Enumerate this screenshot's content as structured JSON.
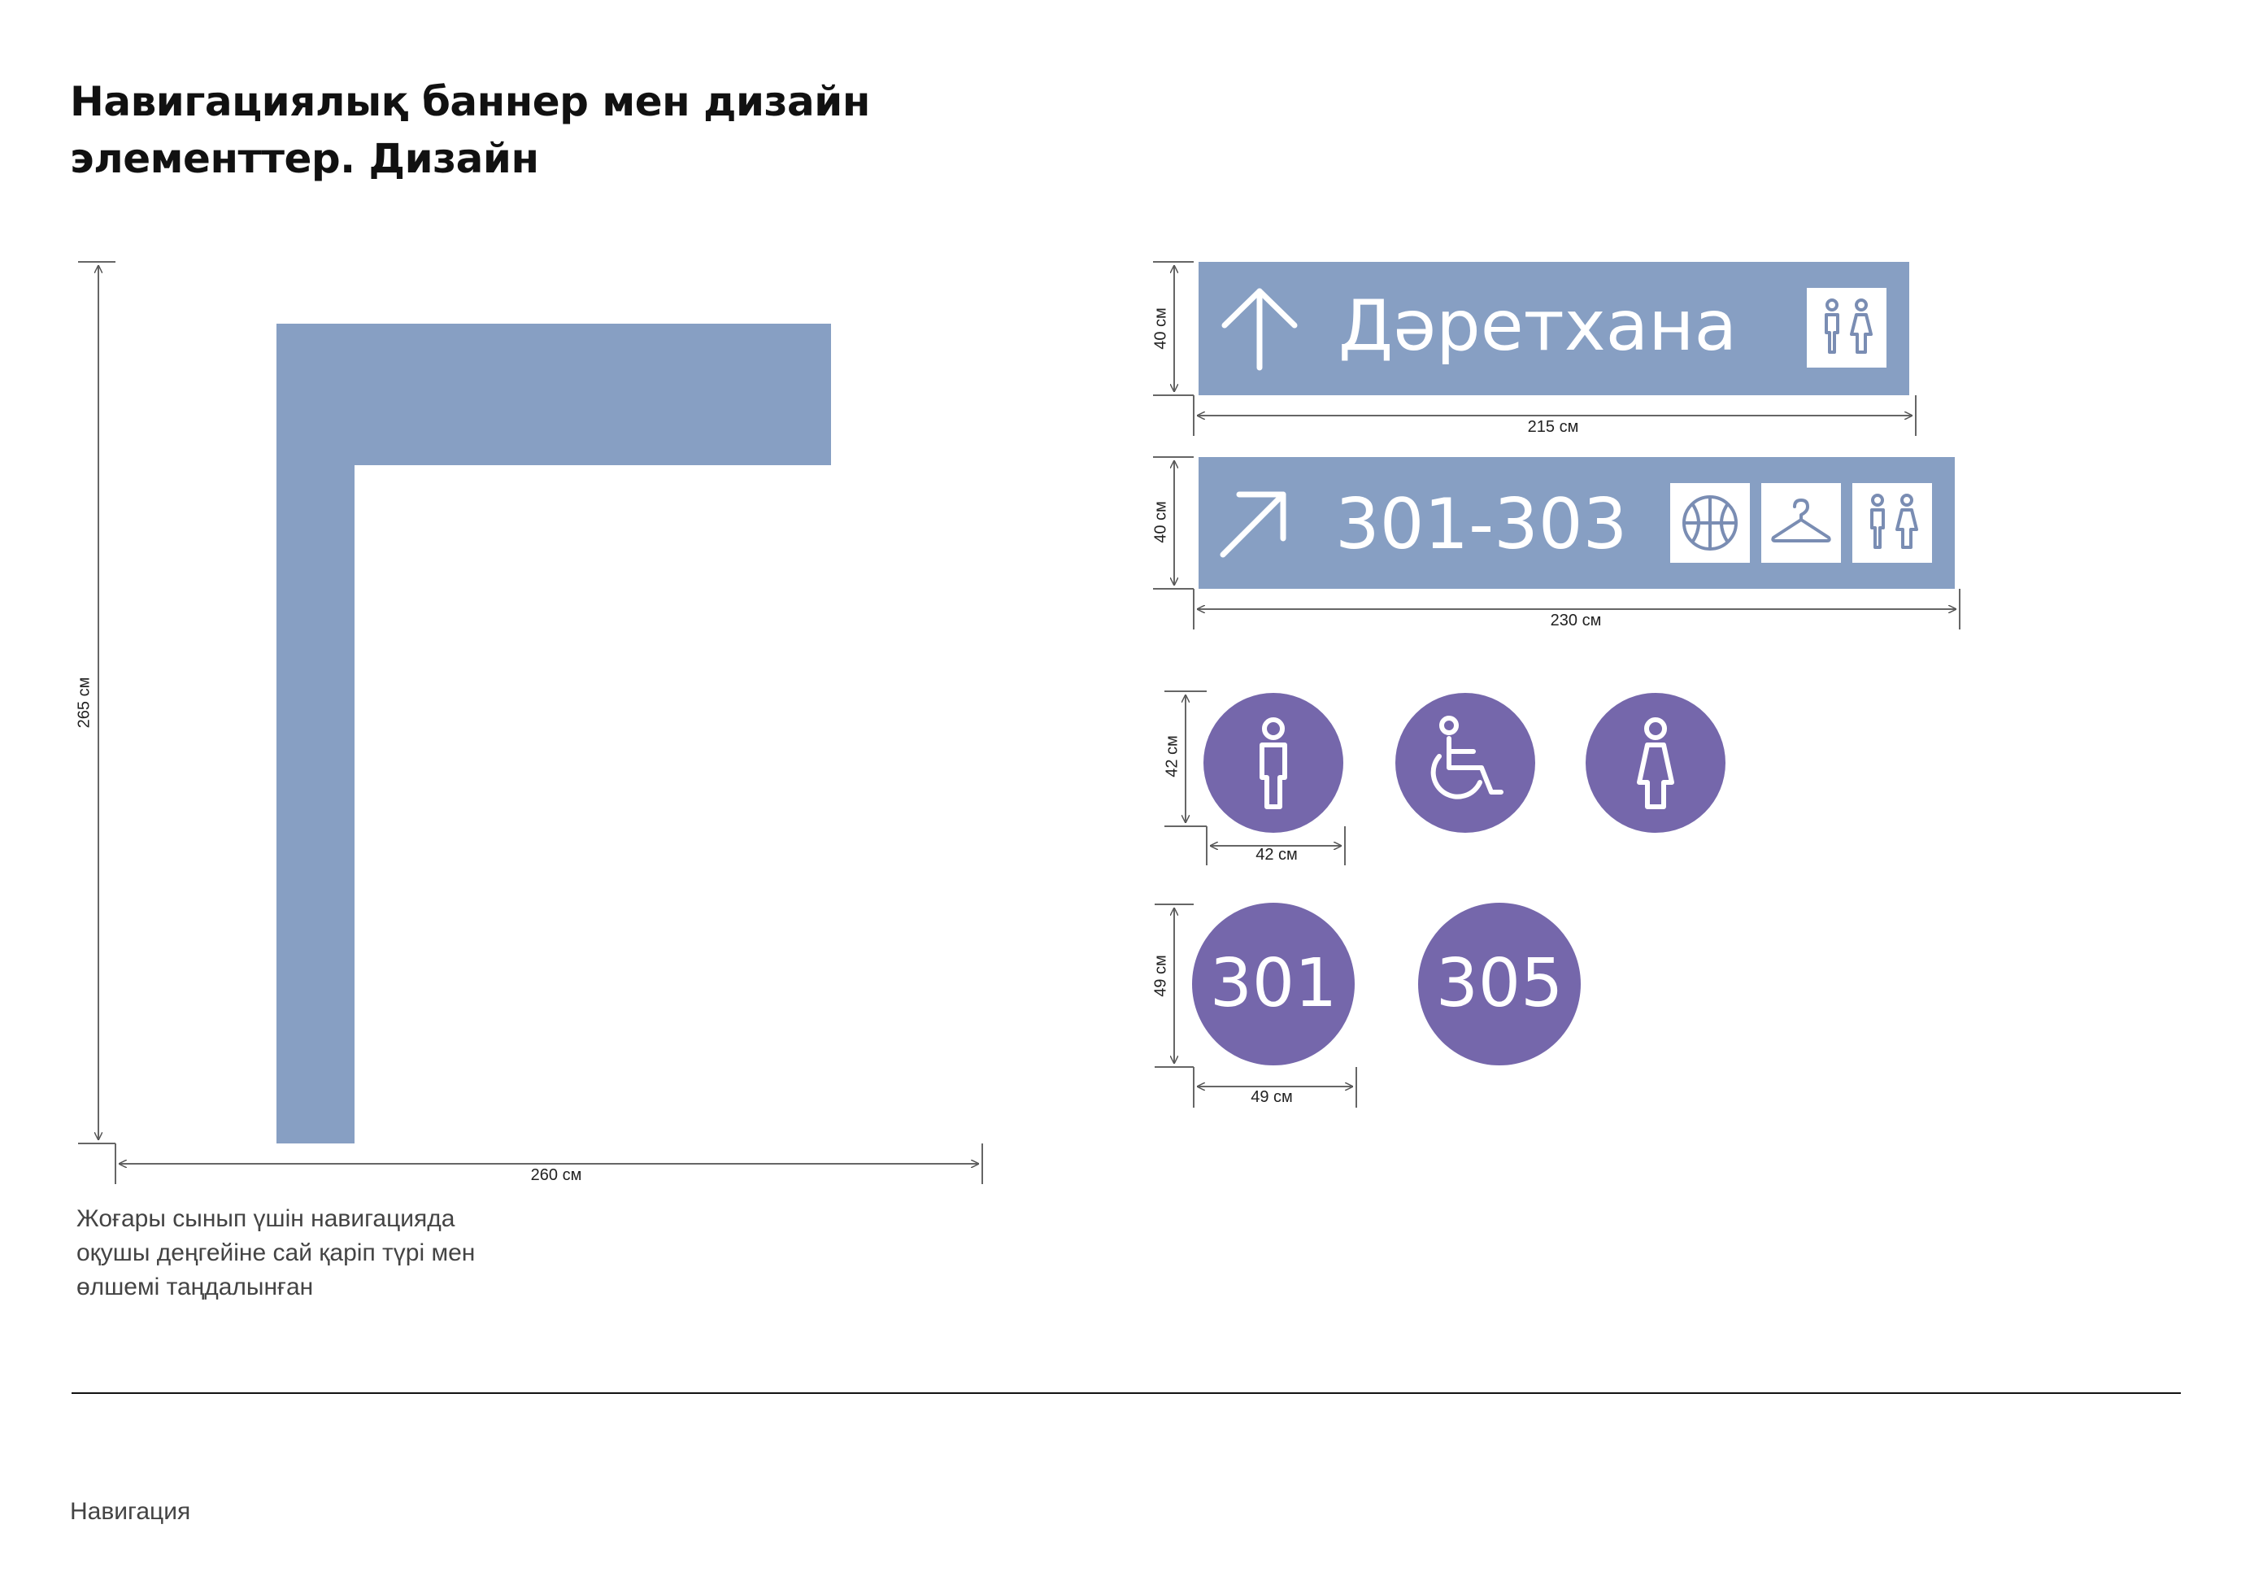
{
  "title": {
    "line1": "Навигациялық баннер мен дизайн",
    "line2": "элементтер. Дизайн"
  },
  "l_banner": {
    "color": "#879fc3",
    "height_label": "265 см",
    "width_label": "260 см"
  },
  "sign_toilet": {
    "arrow_icon": "arrow-up-icon",
    "text": "Дәретхана",
    "icons": [
      "restroom-icon"
    ],
    "height_label": "40 см",
    "width_label": "215 см"
  },
  "sign_rooms": {
    "arrow_icon": "arrow-up-right-icon",
    "text": "301-303",
    "icons": [
      "basketball-icon",
      "hanger-icon",
      "restroom-icon"
    ],
    "height_label": "40 см",
    "width_label": "230 см"
  },
  "pictograms": {
    "color": "#7567ab",
    "items": [
      "man-icon",
      "wheelchair-icon",
      "woman-icon"
    ],
    "height_label": "42 см",
    "width_label": "42 см"
  },
  "room_plates": {
    "items": [
      "301",
      "305"
    ],
    "height_label": "49 см",
    "width_label": "49 см"
  },
  "caption": {
    "line1": "Жоғары сынып үшін навигацияда",
    "line2": "оқушы деңгейіне сай қаріп түрі мен",
    "line3": "өлшемі таңдалынған"
  },
  "footer": {
    "label": "Навигация"
  }
}
